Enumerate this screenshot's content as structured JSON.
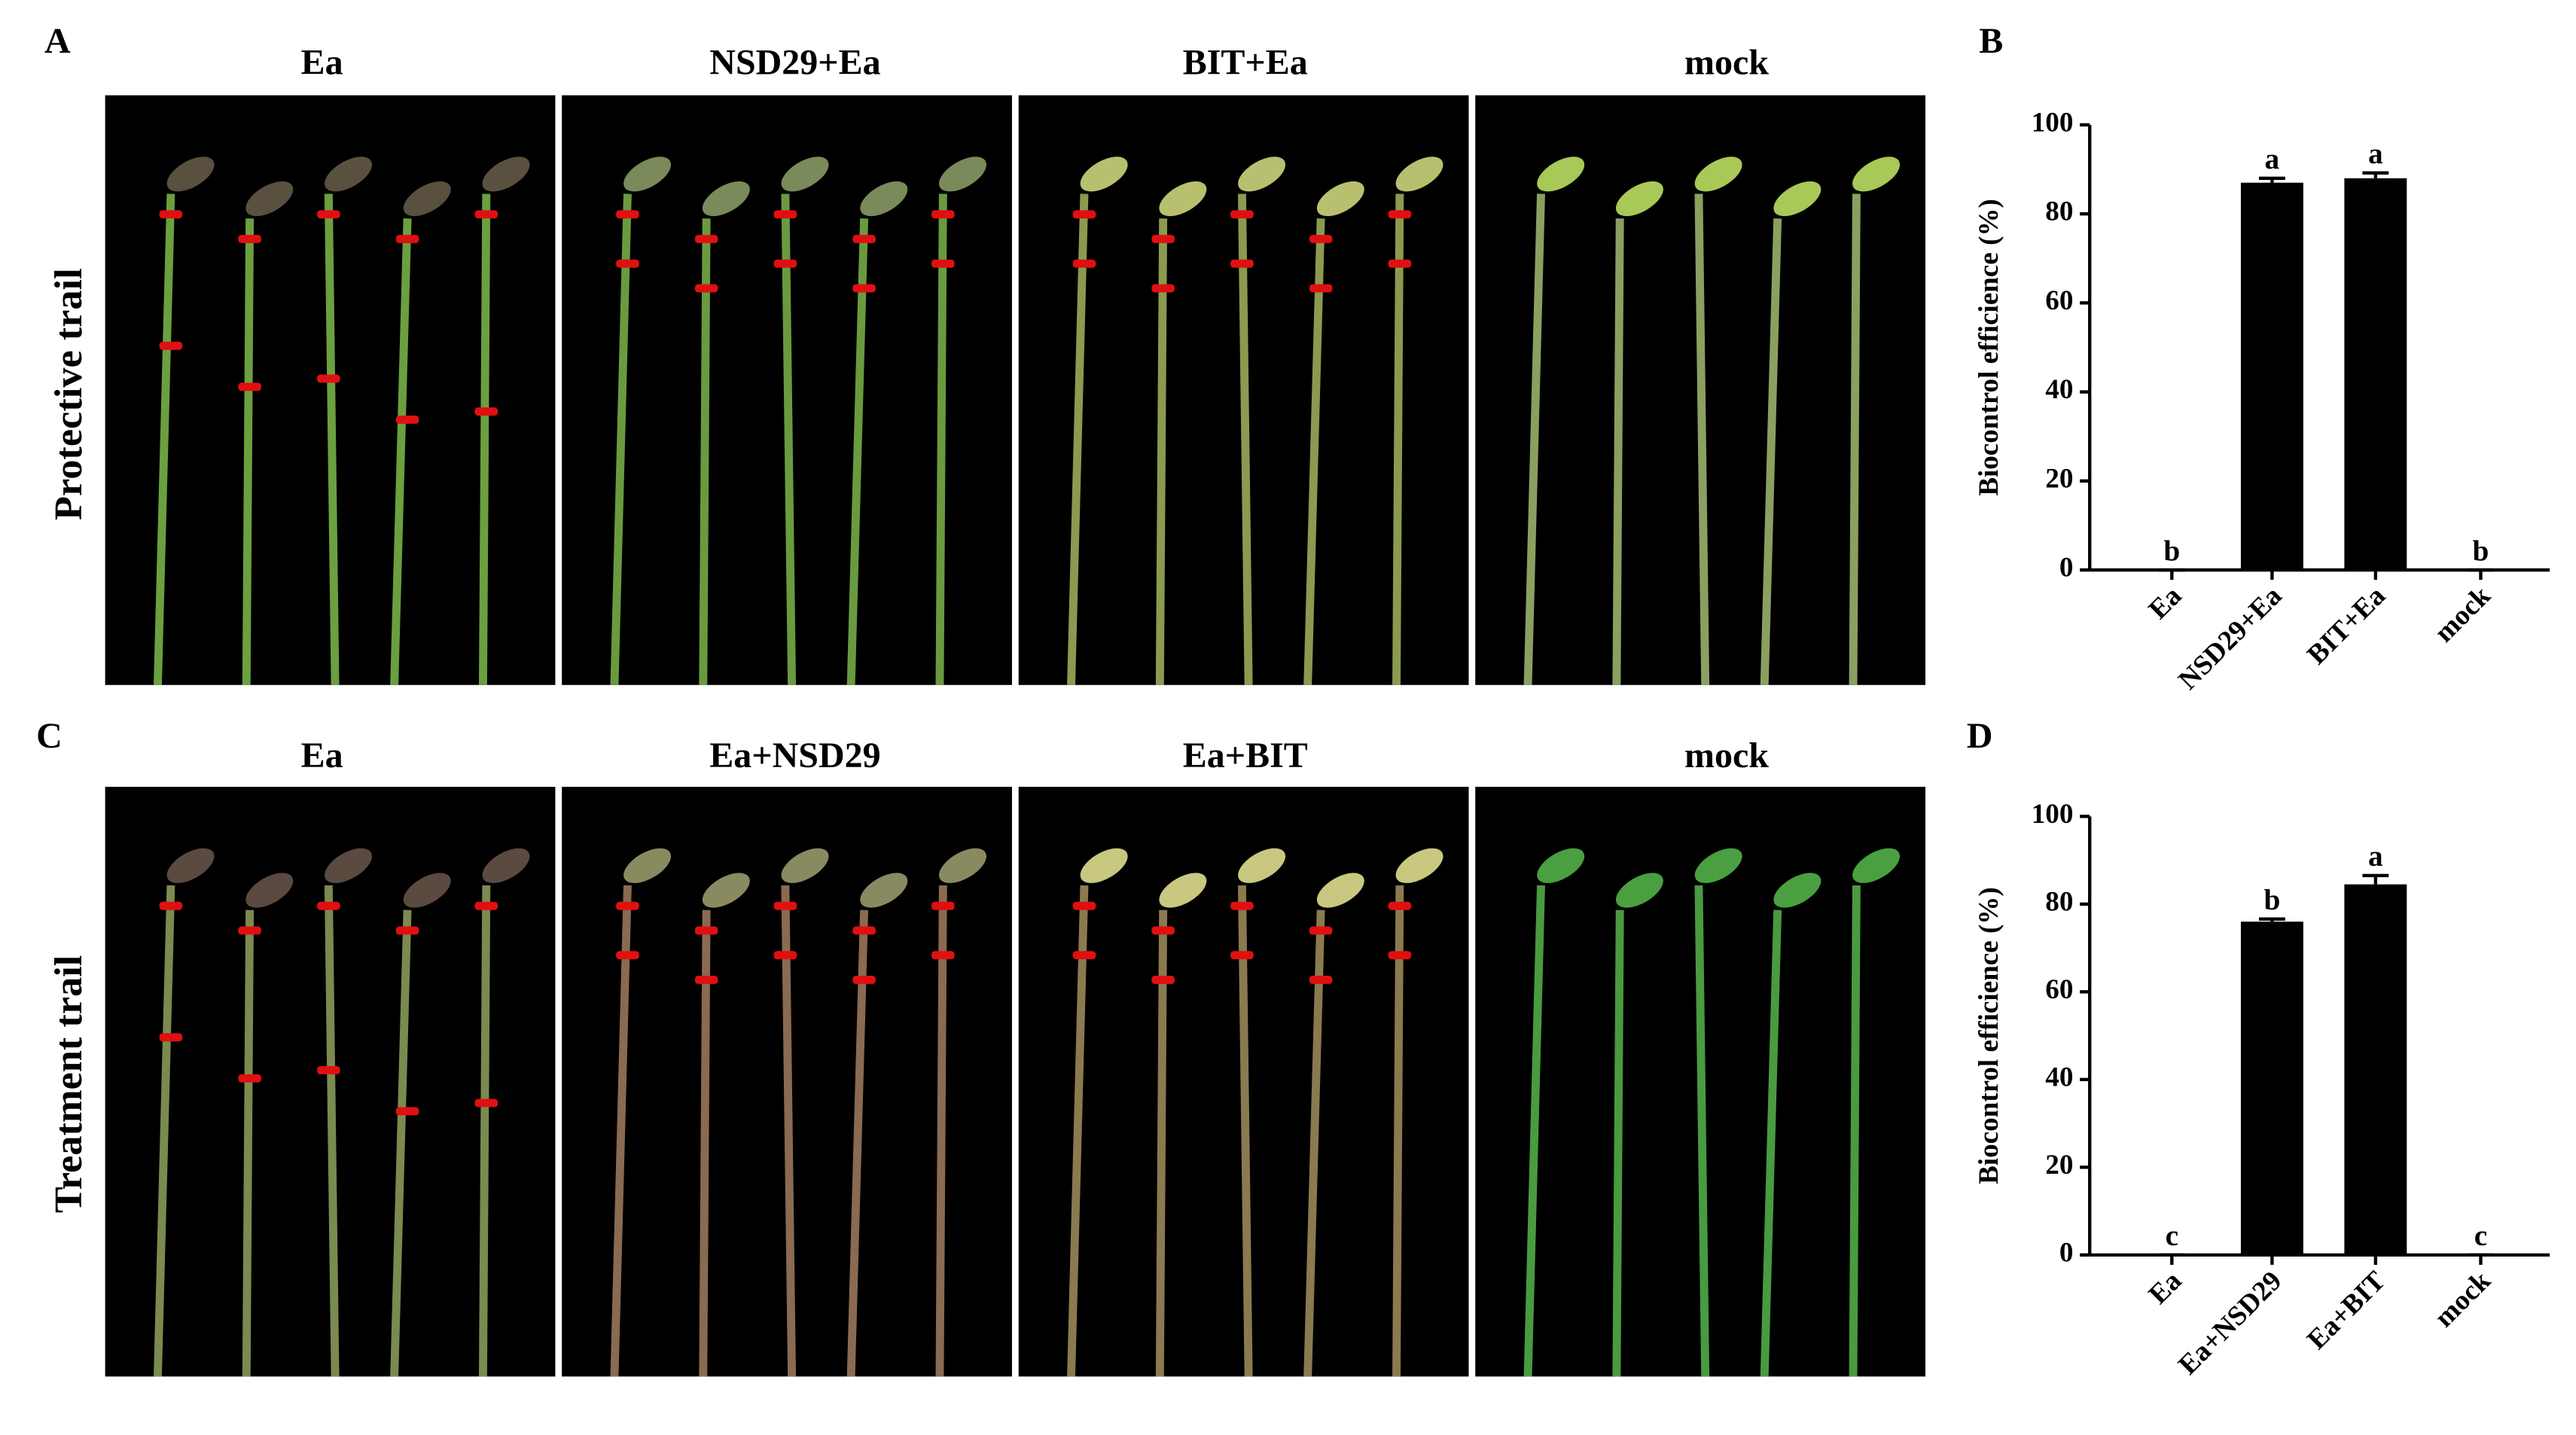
{
  "figure": {
    "panel_labels": [
      "A",
      "B",
      "C",
      "D"
    ],
    "row_labels": [
      "Protective trail",
      "Treatment trail"
    ],
    "photo_titles": [
      [
        "Ea",
        "NSD29+Ea",
        "BIT+Ea",
        "mock"
      ],
      [
        "Ea",
        "Ea+NSD29",
        "Ea+BIT",
        "mock"
      ]
    ]
  },
  "chart_data": [
    {
      "type": "bar",
      "ylabel": "Biocontrol efficience (%)",
      "categories": [
        "Ea",
        "NSD29+Ea",
        "BIT+Ea",
        "mock"
      ],
      "values": [
        0,
        87,
        88,
        0
      ],
      "errors": [
        0,
        1,
        1.2,
        0
      ],
      "annotations": [
        "b",
        "a",
        "a",
        "b"
      ],
      "color": "#000000",
      "ylim": [
        0,
        100
      ],
      "yticks": [
        0,
        20,
        40,
        60,
        80,
        100
      ]
    },
    {
      "type": "bar",
      "ylabel": "Biocontrol efficience (%)",
      "categories": [
        "Ea",
        "Ea+NSD29",
        "Ea+BIT",
        "mock"
      ],
      "values": [
        0,
        76,
        84.5,
        0
      ],
      "errors": [
        0,
        0.6,
        2,
        0
      ],
      "annotations": [
        "c",
        "b",
        "a",
        "c"
      ],
      "color": "#000000",
      "ylim": [
        0,
        100
      ],
      "yticks": [
        0,
        20,
        40,
        60,
        80,
        100
      ]
    }
  ]
}
